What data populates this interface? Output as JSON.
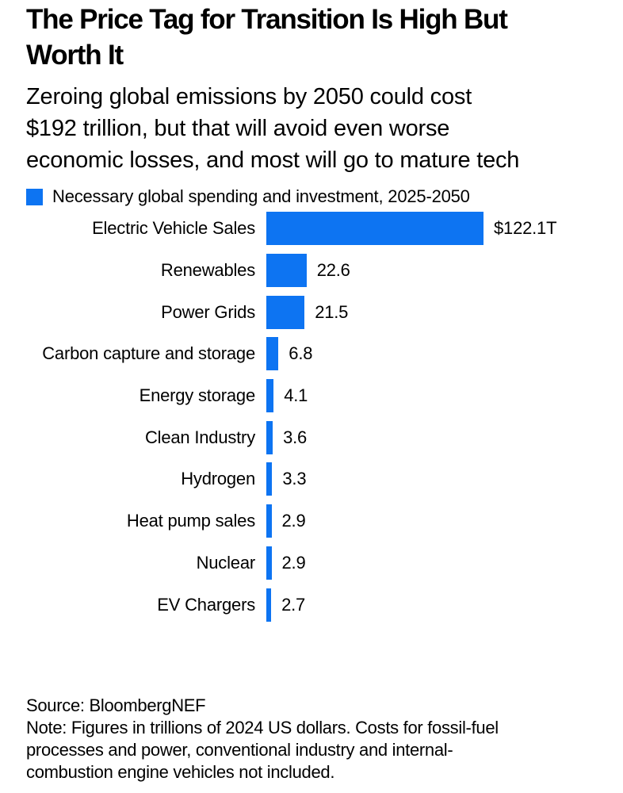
{
  "header": {
    "title": "The Price Tag for Transition Is High But\nWorth It",
    "subtitle": "Zeroing global emissions by 2050 could cost\n$192 trillion, but that will avoid even worse\neconomic losses, and most will go to mature tech"
  },
  "legend": {
    "label": "Necessary global spending and investment, 2025-2050",
    "swatch_color": "#0d74f2"
  },
  "chart_data": {
    "type": "bar",
    "orientation": "horizontal",
    "title": "The Price Tag for Transition Is High But Worth It",
    "legend_label": "Necessary global spending and investment, 2025-2050",
    "categories": [
      "Electric Vehicle Sales",
      "Renewables",
      "Power Grids",
      "Carbon capture and storage",
      "Energy storage",
      "Clean Industry",
      "Hydrogen",
      "Heat pump sales",
      "Nuclear",
      "EV Chargers"
    ],
    "values": [
      122.1,
      22.6,
      21.5,
      6.8,
      4.1,
      3.6,
      3.3,
      2.9,
      2.9,
      2.7
    ],
    "value_labels": [
      "$122.1T",
      "22.6",
      "21.5",
      "6.8",
      "4.1",
      "3.6",
      "3.3",
      "2.9",
      "2.9",
      "2.7"
    ],
    "xlim": [
      0,
      122.1
    ],
    "bar_color": "#0d74f2",
    "grid": false,
    "legend_position": "top-left"
  },
  "footer": {
    "source": "Source: BloombergNEF",
    "note": "Note: Figures in trillions of 2024 US dollars. Costs for fossil-fuel\nprocesses and power, conventional industry and internal-\ncombustion engine vehicles not included."
  }
}
